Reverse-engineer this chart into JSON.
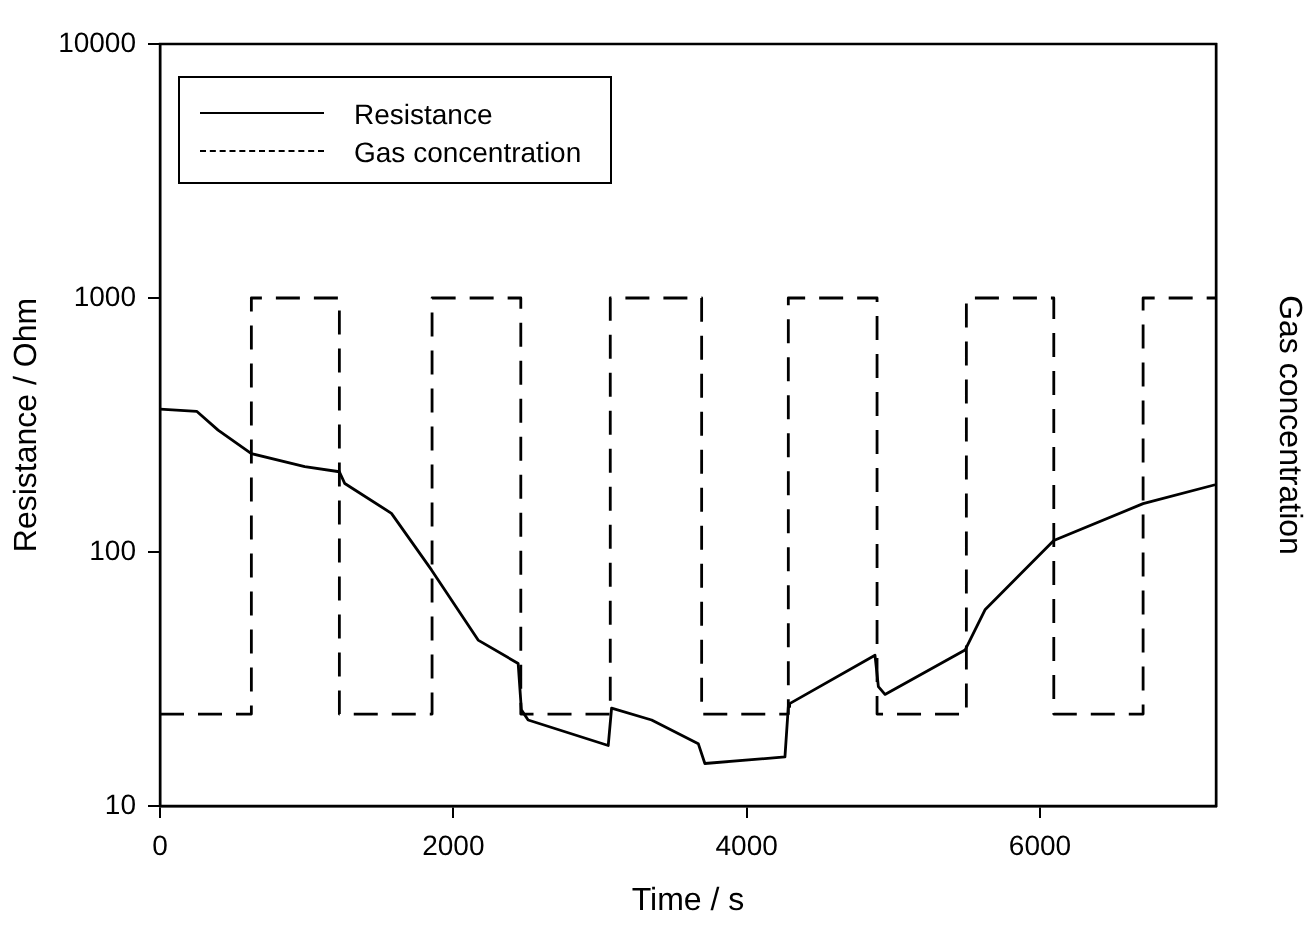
{
  "chart_data": {
    "type": "line",
    "xlabel": "Time / s",
    "ylabel": "Resistance / Ohm",
    "y2label": "Gas concentration",
    "xlim": [
      0,
      7200
    ],
    "xticks": [
      0,
      2000,
      4000,
      6000
    ],
    "ylim": [
      10,
      10000
    ],
    "yticks": [
      10,
      100,
      1000,
      10000
    ],
    "log": "y",
    "grid": false,
    "legend": "top left",
    "marker": "none",
    "series": [
      {
        "name": "Resistance",
        "color": "#000000",
        "line_style": "solid",
        "x": [
          0,
          250,
          396,
          623,
          987,
          1223,
          1260,
          1578,
          1851,
          2169,
          2442,
          2464,
          2510,
          3056,
          3079,
          3352,
          3670,
          3715,
          4261,
          4284,
          4293,
          4875,
          4898,
          4943,
          5489,
          5625,
          6094,
          6703,
          7194
        ],
        "values": [
          365,
          358,
          302,
          244,
          217,
          207,
          186,
          142,
          85,
          45,
          36.4,
          23.9,
          21.8,
          17.3,
          24.3,
          21.8,
          17.6,
          14.7,
          15.6,
          24.6,
          25.3,
          39.2,
          29.5,
          27.5,
          41.1,
          59.2,
          111,
          155,
          184
        ]
      },
      {
        "name": "Gas concentration",
        "color": "#000000",
        "line_style": "dashed",
        "x": [
          0,
          623,
          623,
          1223,
          1223,
          1855,
          1855,
          2460,
          2460,
          3070,
          3070,
          3693,
          3693,
          4284,
          4284,
          4889,
          4889,
          5498,
          5498,
          6094,
          6094,
          6703,
          6703,
          7200
        ],
        "values": [
          23,
          23,
          1000,
          1000,
          23,
          23,
          1000,
          1000,
          23,
          23,
          1000,
          1000,
          23,
          23,
          1000,
          1000,
          23,
          23,
          1000,
          1000,
          23,
          23,
          1000,
          1000
        ]
      }
    ]
  }
}
